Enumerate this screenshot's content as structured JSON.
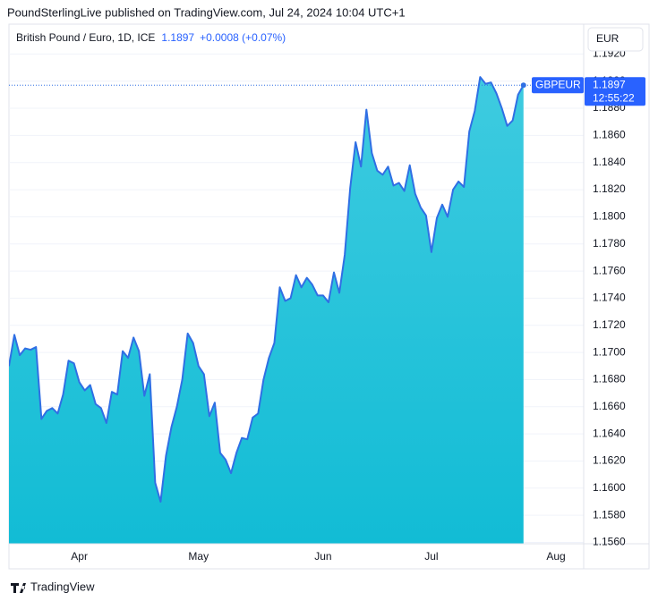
{
  "header": "PoundSterlingLive published on TradingView.com, Jul 24, 2024 10:04 UTC+1",
  "footer": "TradingView",
  "chart_data": {
    "type": "area",
    "title": "British Pound / Euro, 1D, ICE",
    "change": "+0.0008 (+0.07%)",
    "symbol": "GBPEUR",
    "currency": "EUR",
    "countdown": "12:55:22",
    "color": "#2f6fe4",
    "area_colors": [
      "#3ecbe0",
      "#12bcd5"
    ],
    "grid": true,
    "ylim": [
      1.1559,
      1.1942
    ],
    "yticks": [
      {
        "value": 1.156,
        "label": "1.1560"
      },
      {
        "value": 1.158,
        "label": "1.1580"
      },
      {
        "value": 1.16,
        "label": "1.1600"
      },
      {
        "value": 1.162,
        "label": "1.1620"
      },
      {
        "value": 1.164,
        "label": "1.1640"
      },
      {
        "value": 1.166,
        "label": "1.1660"
      },
      {
        "value": 1.168,
        "label": "1.1680"
      },
      {
        "value": 1.17,
        "label": "1.1700"
      },
      {
        "value": 1.172,
        "label": "1.1720"
      },
      {
        "value": 1.174,
        "label": "1.1740"
      },
      {
        "value": 1.176,
        "label": "1.1760"
      },
      {
        "value": 1.178,
        "label": "1.1780"
      },
      {
        "value": 1.18,
        "label": "1.1800"
      },
      {
        "value": 1.182,
        "label": "1.1820"
      },
      {
        "value": 1.184,
        "label": "1.1840"
      },
      {
        "value": 1.186,
        "label": "1.1860"
      },
      {
        "value": 1.188,
        "label": "1.1880"
      },
      {
        "value": 1.19,
        "label": "1.1900"
      },
      {
        "value": 1.192,
        "label": "1.1920"
      }
    ],
    "categories": [
      null,
      null,
      null,
      null,
      null,
      null,
      null,
      null,
      null,
      null,
      null,
      null,
      null,
      "Apr",
      null,
      null,
      null,
      null,
      null,
      null,
      null,
      null,
      null,
      null,
      null,
      null,
      null,
      null,
      null,
      null,
      null,
      null,
      null,
      null,
      null,
      "May",
      null,
      null,
      null,
      null,
      null,
      null,
      null,
      null,
      null,
      null,
      null,
      null,
      null,
      null,
      null,
      null,
      null,
      null,
      null,
      null,
      null,
      null,
      "Jun",
      null,
      null,
      null,
      null,
      null,
      null,
      null,
      null,
      null,
      null,
      null,
      null,
      null,
      null,
      null,
      null,
      null,
      null,
      null,
      "Jul",
      null,
      null,
      null,
      null,
      null,
      null,
      null,
      null,
      null,
      null,
      null,
      null,
      null,
      null,
      null,
      null,
      null,
      null,
      null,
      null,
      null,
      null,
      "Aug",
      null,
      null,
      null,
      null,
      null
    ],
    "values": [
      1.169,
      1.1713,
      1.1698,
      1.1703,
      1.1702,
      1.1704,
      1.1651,
      1.1657,
      1.1659,
      1.1655,
      1.1669,
      1.1694,
      1.1692,
      1.1678,
      1.1672,
      1.1676,
      1.1662,
      1.1659,
      1.1648,
      1.1671,
      1.1669,
      1.1701,
      1.1696,
      1.1711,
      1.1701,
      1.1668,
      1.1684,
      1.1604,
      1.159,
      1.1624,
      1.1645,
      1.166,
      1.168,
      1.1714,
      1.1707,
      1.169,
      1.1684,
      1.1653,
      1.1663,
      1.1626,
      1.1621,
      1.1611,
      1.1626,
      1.1637,
      1.1636,
      1.1652,
      1.1655,
      1.168,
      1.1696,
      1.1707,
      1.1748,
      1.1738,
      1.174,
      1.1757,
      1.1748,
      1.1755,
      1.175,
      1.1742,
      1.1742,
      1.1737,
      1.1759,
      1.1744,
      1.1772,
      1.1821,
      1.1855,
      1.1837,
      1.1879,
      1.1847,
      1.1834,
      1.1831,
      1.1837,
      1.1823,
      1.1825,
      1.1819,
      1.1838,
      1.1817,
      1.1807,
      1.1801,
      1.1774,
      1.1799,
      1.1809,
      1.18,
      1.182,
      1.1826,
      1.1822,
      1.1863,
      1.1878,
      1.1903,
      1.1898,
      1.1899,
      1.1891,
      1.188,
      1.1867,
      1.1871,
      1.189,
      1.1897,
      null,
      null,
      null,
      null,
      null,
      null,
      null,
      null,
      null,
      null,
      null
    ]
  }
}
